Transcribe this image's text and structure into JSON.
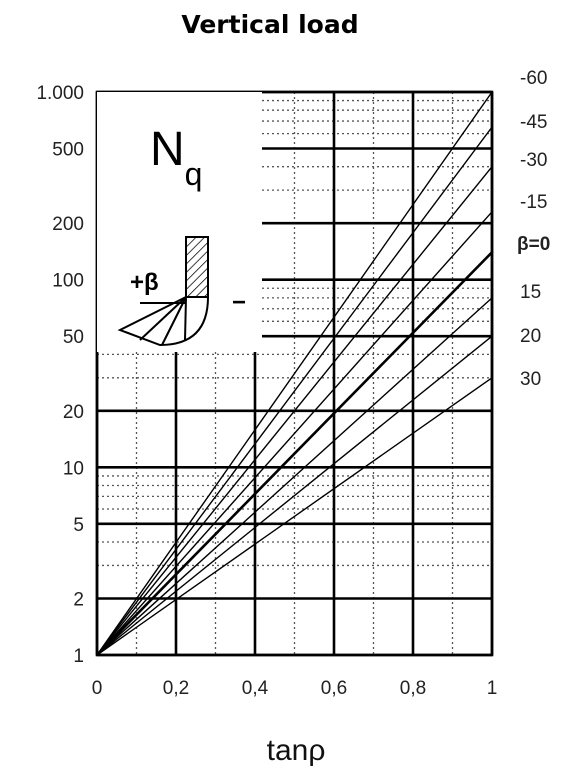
{
  "chart_data": {
    "type": "line",
    "title": "Vertical load",
    "xlabel": "tanρ",
    "ylabel": "",
    "xlim": [
      0,
      1
    ],
    "ylim": [
      1,
      1000
    ],
    "y_scale": "log",
    "grid": true,
    "x_ticks": [
      0,
      0.2,
      0.4,
      0.6,
      0.8,
      1
    ],
    "x_tick_labels": [
      "0",
      "0,2",
      "0,4",
      "0,6",
      "0,8",
      "1"
    ],
    "y_ticks": [
      1,
      2,
      5,
      10,
      20,
      50,
      100,
      200,
      500,
      1000
    ],
    "y_tick_labels": [
      "1",
      "2",
      "5",
      "10",
      "20",
      "50",
      "100",
      "200",
      "500",
      "1.000"
    ],
    "inset": {
      "symbol": "N",
      "subscript": "q",
      "plus_beta": "+β",
      "minus": "−"
    },
    "series": [
      {
        "name": "-60",
        "label": "-60",
        "x": [
          0,
          1
        ],
        "y": [
          1,
          1000
        ]
      },
      {
        "name": "-45",
        "label": "-45",
        "x": [
          0,
          1
        ],
        "y": [
          1,
          650
        ]
      },
      {
        "name": "-30",
        "label": "-30",
        "x": [
          0,
          1
        ],
        "y": [
          1,
          400
        ]
      },
      {
        "name": "-15",
        "label": "-15",
        "x": [
          0,
          1
        ],
        "y": [
          1,
          230
        ]
      },
      {
        "name": "0",
        "label": "β=0",
        "x": [
          0,
          1
        ],
        "y": [
          1,
          140
        ]
      },
      {
        "name": "15",
        "label": "15",
        "x": [
          0,
          1
        ],
        "y": [
          1,
          80
        ]
      },
      {
        "name": "20",
        "label": "20",
        "x": [
          0,
          1
        ],
        "y": [
          1,
          50
        ]
      },
      {
        "name": "30",
        "label": "30",
        "x": [
          0,
          1
        ],
        "y": [
          1,
          30
        ]
      }
    ]
  }
}
